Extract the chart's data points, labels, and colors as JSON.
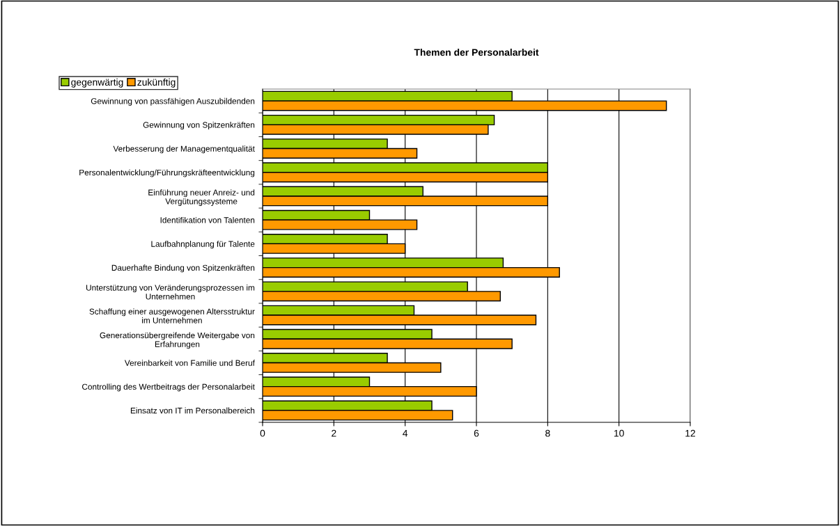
{
  "chart_data": {
    "type": "bar",
    "orientation": "horizontal",
    "title": "Themen der Personalarbeit",
    "categories": [
      "Gewinnung von passfähigen Auszubildenden",
      "Gewinnung von Spitzenkräften",
      "Verbesserung der Managementqualität",
      "Personalentwicklung/Führungskräfteentwicklung",
      "Einführung neuer Anreiz- und\nVergütungssysteme",
      "Identifikation von Talenten",
      "Laufbahnplanung für Talente",
      "Dauerhafte Bindung von Spitzenkräften",
      "Unterstützung von Veränderungsprozessen im\nUnternehmen",
      "Schaffung einer ausgewogenen Altersstruktur\nim Unternehmen",
      "Generationsübergreifende Weitergabe von\nErfahrungen",
      "Vereinbarkeit von Familie und Beruf",
      "Controlling des Wertbeitrags der Personalarbeit",
      "Einsatz von IT im Personalbereich"
    ],
    "series": [
      {
        "name": "gegenwärtig",
        "color": "#99cc00",
        "values": [
          7.0,
          6.5,
          3.5,
          8.0,
          4.5,
          3.0,
          3.5,
          6.75,
          5.75,
          4.25,
          4.75,
          3.5,
          3.0,
          4.75
        ]
      },
      {
        "name": "zukünftig",
        "color": "#ff9900",
        "values": [
          11.33,
          6.33,
          4.33,
          8.0,
          8.0,
          4.33,
          4.0,
          8.33,
          6.67,
          7.67,
          7.0,
          5.0,
          6.0,
          5.33
        ]
      }
    ],
    "xlim": [
      0,
      12
    ],
    "xticks": [
      0,
      2,
      4,
      6,
      8,
      10,
      12
    ],
    "grid": "x",
    "legend": "top left"
  }
}
